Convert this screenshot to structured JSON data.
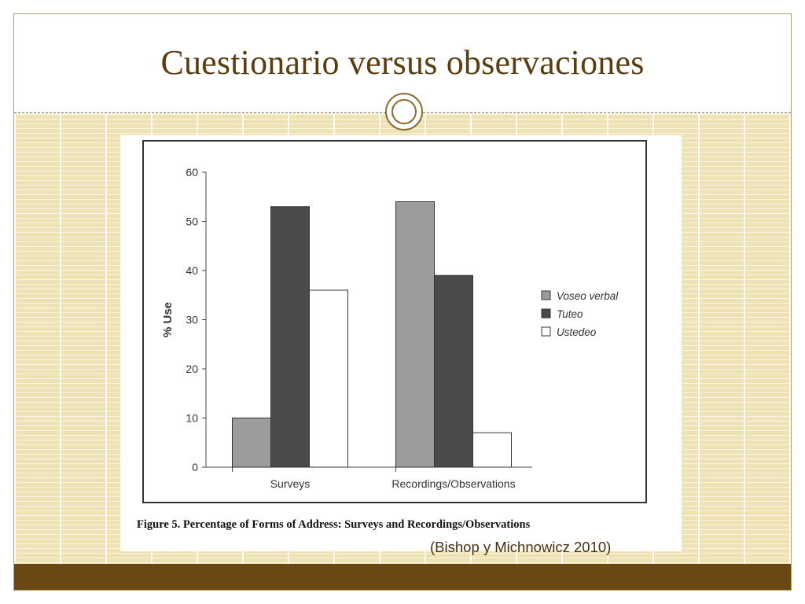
{
  "slide": {
    "title": "Cuestionario versus observaciones",
    "caption": "Figure 5. Percentage of Forms of Address: Surveys and Recordings/Observations",
    "citation": "(Bishop y Michnowicz 2010)"
  },
  "colors": {
    "title": "#5a3d12",
    "grid_background": "#efe3b6",
    "footer_bar": "#6b4813"
  },
  "chart_data": {
    "type": "bar",
    "categories": [
      "Surveys",
      "Recordings/Observations"
    ],
    "series": [
      {
        "name": "Voseo verbal",
        "values": [
          10,
          54
        ],
        "color": "#9c9c9c"
      },
      {
        "name": "Tuteo",
        "values": [
          53,
          39
        ],
        "color": "#4a4a4a"
      },
      {
        "name": "Ustedeo",
        "values": [
          36,
          7
        ],
        "color": "#ffffff"
      }
    ],
    "ylabel": "% Use",
    "xlabel": "",
    "ylim": [
      0,
      60
    ],
    "yticks": [
      0,
      10,
      20,
      30,
      40,
      50,
      60
    ],
    "grid": false,
    "legend_position": "right"
  }
}
